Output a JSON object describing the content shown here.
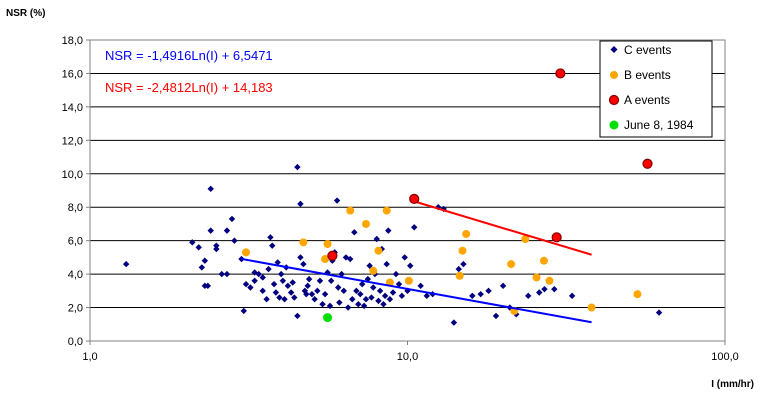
{
  "chart_data": {
    "type": "scatter",
    "title": "",
    "ylabel": "NSR (%)",
    "xlabel": "I (mm/hr)",
    "x_scale": "log",
    "xlim": [
      1,
      100
    ],
    "ylim": [
      0,
      18
    ],
    "x_ticks": [
      "1,0",
      "10,0",
      "100,0"
    ],
    "y_ticks": [
      "0,0",
      "2,0",
      "4,0",
      "6,0",
      "8,0",
      "10,0",
      "12,0",
      "14,0",
      "16,0",
      "18,0"
    ],
    "grid": "horizontal",
    "legend_position": "top-right",
    "colors": {
      "c_events": "#000080",
      "b_events": "#FFA500",
      "a_events": "#FF0000",
      "a_events_edge": "#800000",
      "june": "#00E000",
      "trend_c": "#0000FF",
      "trend_a": "#FF0000"
    },
    "annotations": [
      {
        "text": "NSR = -1,4916Ln(I) + 6,5471",
        "color": "#0000FF"
      },
      {
        "text": "NSR = -2,4812Ln(I) + 14,183",
        "color": "#FF0000"
      }
    ],
    "trendlines": [
      {
        "series": "C events",
        "slope": -1.4916,
        "intercept": 6.5471,
        "x_range": [
          3.0,
          38.0
        ],
        "color": "#0000FF"
      },
      {
        "series": "A events",
        "slope": -2.4812,
        "intercept": 14.183,
        "x_range": [
          10.5,
          38.0
        ],
        "color": "#FF0000"
      }
    ],
    "series": [
      {
        "name": "C events",
        "marker": "diamond",
        "color": "#000080",
        "points": [
          [
            1.3,
            4.6
          ],
          [
            2.1,
            5.9
          ],
          [
            2.2,
            5.6
          ],
          [
            2.25,
            4.4
          ],
          [
            2.3,
            4.8
          ],
          [
            2.3,
            3.3
          ],
          [
            2.35,
            3.3
          ],
          [
            2.4,
            6.6
          ],
          [
            2.4,
            9.1
          ],
          [
            2.5,
            5.7
          ],
          [
            2.5,
            5.5
          ],
          [
            2.6,
            4.0
          ],
          [
            2.7,
            4.0
          ],
          [
            2.7,
            6.6
          ],
          [
            2.8,
            7.3
          ],
          [
            2.85,
            6.0
          ],
          [
            3.0,
            4.9
          ],
          [
            3.05,
            1.8
          ],
          [
            3.1,
            3.4
          ],
          [
            3.2,
            3.2
          ],
          [
            3.3,
            4.1
          ],
          [
            3.3,
            3.6
          ],
          [
            3.4,
            4.0
          ],
          [
            3.5,
            3.8
          ],
          [
            3.5,
            3.0
          ],
          [
            3.6,
            2.5
          ],
          [
            3.65,
            4.3
          ],
          [
            3.7,
            6.2
          ],
          [
            3.75,
            5.7
          ],
          [
            3.8,
            3.4
          ],
          [
            3.85,
            2.9
          ],
          [
            3.9,
            4.7
          ],
          [
            3.95,
            2.6
          ],
          [
            4.0,
            4.0
          ],
          [
            4.05,
            3.6
          ],
          [
            4.1,
            2.5
          ],
          [
            4.15,
            4.4
          ],
          [
            4.2,
            3.3
          ],
          [
            4.3,
            2.9
          ],
          [
            4.35,
            3.5
          ],
          [
            4.4,
            2.6
          ],
          [
            4.5,
            10.4
          ],
          [
            4.5,
            1.5
          ],
          [
            4.6,
            5.0
          ],
          [
            4.6,
            8.2
          ],
          [
            4.7,
            4.6
          ],
          [
            4.75,
            3.0
          ],
          [
            4.8,
            2.8
          ],
          [
            4.85,
            3.3
          ],
          [
            4.9,
            3.7
          ],
          [
            5.0,
            2.8
          ],
          [
            5.1,
            2.5
          ],
          [
            5.2,
            3.0
          ],
          [
            5.3,
            3.6
          ],
          [
            5.4,
            2.2
          ],
          [
            5.5,
            2.8
          ],
          [
            5.6,
            4.1
          ],
          [
            5.7,
            2.1
          ],
          [
            5.75,
            3.6
          ],
          [
            5.8,
            4.8
          ],
          [
            5.9,
            5.3
          ],
          [
            6.0,
            8.4
          ],
          [
            6.05,
            3.2
          ],
          [
            6.1,
            2.3
          ],
          [
            6.2,
            4.0
          ],
          [
            6.3,
            3.0
          ],
          [
            6.4,
            5.0
          ],
          [
            6.5,
            2.0
          ],
          [
            6.6,
            4.9
          ],
          [
            6.7,
            2.5
          ],
          [
            6.8,
            6.5
          ],
          [
            6.9,
            3.0
          ],
          [
            7.0,
            2.2
          ],
          [
            7.1,
            2.8
          ],
          [
            7.2,
            3.4
          ],
          [
            7.3,
            2.1
          ],
          [
            7.4,
            2.5
          ],
          [
            7.5,
            3.7
          ],
          [
            7.6,
            4.5
          ],
          [
            7.7,
            2.6
          ],
          [
            7.8,
            3.2
          ],
          [
            7.9,
            4.0
          ],
          [
            8.0,
            6.1
          ],
          [
            8.1,
            2.4
          ],
          [
            8.2,
            3.0
          ],
          [
            8.3,
            5.5
          ],
          [
            8.4,
            2.2
          ],
          [
            8.5,
            2.7
          ],
          [
            8.6,
            4.6
          ],
          [
            8.7,
            6.6
          ],
          [
            8.8,
            2.5
          ],
          [
            9.0,
            2.9
          ],
          [
            9.2,
            4.0
          ],
          [
            9.4,
            3.4
          ],
          [
            9.6,
            2.7
          ],
          [
            9.8,
            5.0
          ],
          [
            10.0,
            3.0
          ],
          [
            10.2,
            4.5
          ],
          [
            10.5,
            6.8
          ],
          [
            11.0,
            3.3
          ],
          [
            11.5,
            2.7
          ],
          [
            12.0,
            2.8
          ],
          [
            12.5,
            8.0
          ],
          [
            13.0,
            7.9
          ],
          [
            14.0,
            1.1
          ],
          [
            14.5,
            4.3
          ],
          [
            15.0,
            4.6
          ],
          [
            16.0,
            2.7
          ],
          [
            17.0,
            2.8
          ],
          [
            18.0,
            3.0
          ],
          [
            19.0,
            1.5
          ],
          [
            20.0,
            3.3
          ],
          [
            21.0,
            2.0
          ],
          [
            22.0,
            1.6
          ],
          [
            24.0,
            2.7
          ],
          [
            26.0,
            2.9
          ],
          [
            27.0,
            3.1
          ],
          [
            29.0,
            3.1
          ],
          [
            33.0,
            2.7
          ],
          [
            62.0,
            1.7
          ]
        ]
      },
      {
        "name": "B events",
        "marker": "circle",
        "color": "#FFA500",
        "points": [
          [
            3.1,
            5.3
          ],
          [
            4.7,
            5.9
          ],
          [
            5.5,
            4.9
          ],
          [
            5.6,
            5.8
          ],
          [
            6.6,
            7.8
          ],
          [
            7.4,
            7.0
          ],
          [
            7.8,
            4.2
          ],
          [
            8.1,
            5.4
          ],
          [
            8.6,
            7.8
          ],
          [
            8.8,
            3.5
          ],
          [
            10.1,
            3.6
          ],
          [
            14.6,
            3.9
          ],
          [
            14.9,
            5.4
          ],
          [
            15.3,
            6.4
          ],
          [
            21.2,
            4.6
          ],
          [
            21.7,
            1.8
          ],
          [
            23.5,
            6.1
          ],
          [
            25.5,
            3.8
          ],
          [
            26.9,
            4.8
          ],
          [
            28.0,
            3.6
          ],
          [
            38.0,
            2.0
          ],
          [
            53.0,
            2.8
          ]
        ]
      },
      {
        "name": "A events",
        "marker": "circle",
        "color": "#FF0000",
        "points": [
          [
            5.8,
            5.1
          ],
          [
            10.5,
            8.5
          ],
          [
            29.5,
            6.2
          ],
          [
            30.3,
            16.0
          ],
          [
            57.0,
            10.6
          ]
        ]
      },
      {
        "name": "June 8, 1984",
        "marker": "circle",
        "color": "#00E000",
        "points": [
          [
            5.6,
            1.4
          ]
        ]
      }
    ]
  }
}
